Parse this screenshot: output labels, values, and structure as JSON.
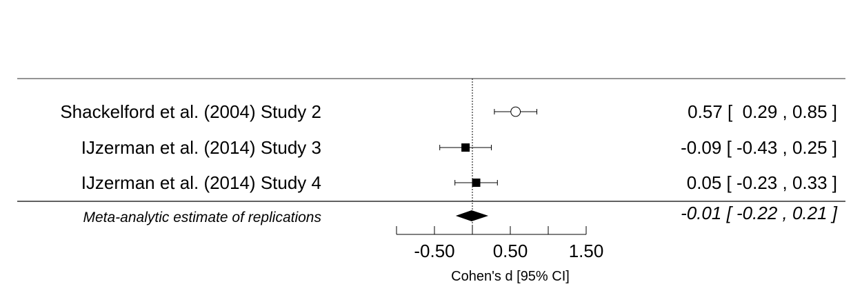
{
  "chart_data": {
    "type": "forest",
    "xlabel": "Cohen's d [95% CI]",
    "xlim": [
      -1.0,
      1.5
    ],
    "ticks": [
      -1.0,
      -0.5,
      0.0,
      0.5,
      1.0,
      1.5
    ],
    "tick_labels": [
      {
        "value": -0.5,
        "label": "-0.50"
      },
      {
        "value": 0.5,
        "label": "0.50"
      },
      {
        "value": 1.5,
        "label": "1.50"
      }
    ],
    "reference_line": 0,
    "studies": [
      {
        "label": "Shackelford et al. (2004) Study 2",
        "estimate": 0.57,
        "ci_lower": 0.29,
        "ci_upper": 0.85,
        "ci_text": "0.57 [  0.29 , 0.85 ]",
        "marker": "open-circle",
        "marker_weight": 0.6
      },
      {
        "label": "IJzerman et al. (2014) Study 3",
        "estimate": -0.09,
        "ci_lower": -0.43,
        "ci_upper": 0.25,
        "ci_text": "-0.09 [ -0.43 , 0.25 ]",
        "marker": "filled-square",
        "marker_weight": 1.0
      },
      {
        "label": "IJzerman et al. (2014) Study 4",
        "estimate": 0.05,
        "ci_lower": -0.23,
        "ci_upper": 0.33,
        "ci_text": "0.05 [ -0.23 , 0.33 ]",
        "marker": "filled-square",
        "marker_weight": 1.0
      }
    ],
    "summary": {
      "label": "Meta-analytic estimate of replications",
      "estimate": -0.01,
      "ci_lower": -0.22,
      "ci_upper": 0.21,
      "ci_text": "-0.01 [ -0.22 , 0.21 ]"
    }
  }
}
